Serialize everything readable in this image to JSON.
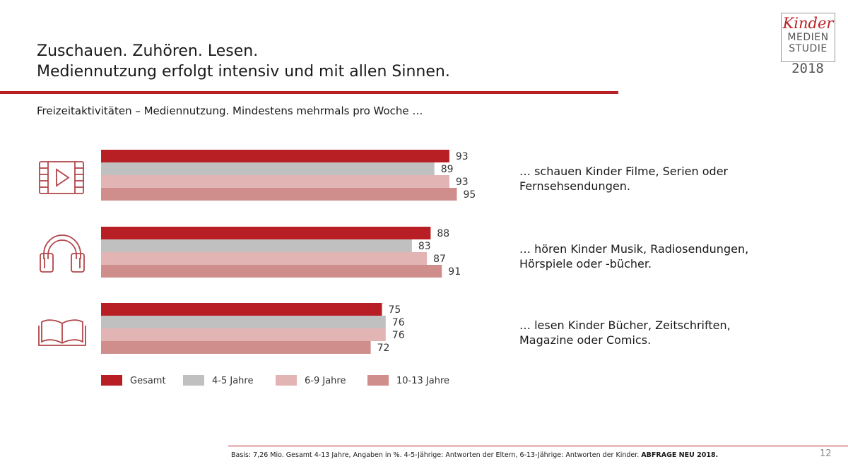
{
  "header": {
    "title_line1": "Zuschauen. Zuhören. Lesen.",
    "title_line2": "Mediennutzung erfolgt intensiv und mit allen Sinnen.",
    "subtitle": "Freizeitaktivitäten – Mediennutzung. Mindestens mehrmals pro Woche …"
  },
  "logo": {
    "kinder": "Kinder",
    "medien": "MEDIEN",
    "studie": "STUDIE",
    "year": "2018"
  },
  "colors": {
    "accent": "#b81f24",
    "gesamt": "#b81f24",
    "age_4_5": "#c0c0c0",
    "age_6_9": "#e2b4b4",
    "age_10_13": "#cf8e8c",
    "icon": "#b3454a"
  },
  "chart_data": {
    "type": "bar",
    "orientation": "horizontal",
    "categories": [
      "… schauen Kinder Filme, Serien oder Fernsehsendungen.",
      "… hören Kinder Musik, Radiosendungen, Hörspiele oder -bücher.",
      "… lesen Kinder Bücher, Zeitschriften, Magazine oder Comics."
    ],
    "category_icons": [
      "film-icon",
      "headphones-icon",
      "book-icon"
    ],
    "series": [
      {
        "name": "Gesamt",
        "values": [
          93,
          88,
          75
        ]
      },
      {
        "name": "4-5 Jahre",
        "values": [
          89,
          83,
          76
        ]
      },
      {
        "name": "6-9 Jahre",
        "values": [
          93,
          87,
          76
        ]
      },
      {
        "name": "10-13 Jahre",
        "values": [
          95,
          91,
          72
        ]
      }
    ],
    "xlim": [
      0,
      100
    ],
    "grid": false,
    "legend_placement": "bottom",
    "data_labels": true
  },
  "descriptions": [
    {
      "line1": "… schauen Kinder Filme, Serien oder",
      "line2": "Fernsehsendungen."
    },
    {
      "line1": "… hören Kinder Musik, Radiosendungen,",
      "line2": "Hörspiele oder -bücher."
    },
    {
      "line1": "… lesen Kinder Bücher, Zeitschriften,",
      "line2": "Magazine oder Comics."
    }
  ],
  "footer": {
    "basis": "Basis: 7,26 Mio. Gesamt 4-13 Jahre, Angaben in %. 4-5-Jährige: Antworten der Eltern, 6-13-Jährige: Antworten der Kinder.",
    "emphasis": "ABFRAGE NEU 2018.",
    "page_number": "12"
  }
}
